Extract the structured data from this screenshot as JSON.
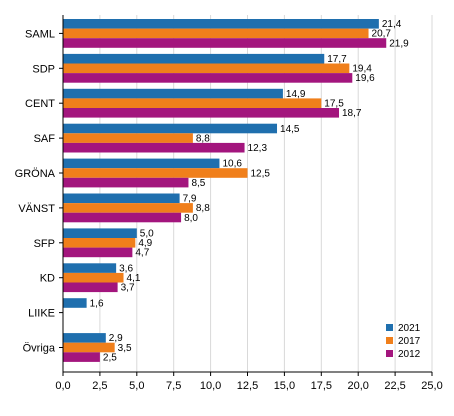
{
  "chart_data": {
    "type": "bar",
    "orientation": "horizontal",
    "categories": [
      "SAML",
      "SDP",
      "CENT",
      "SAF",
      "GRÖNA",
      "VÄNST",
      "SFP",
      "KD",
      "LIIKE",
      "Övriga"
    ],
    "series": [
      {
        "name": "2021",
        "color": "#1f6fae",
        "values": [
          21.4,
          17.7,
          14.9,
          14.5,
          10.6,
          7.9,
          5.0,
          3.6,
          1.6,
          2.9
        ]
      },
      {
        "name": "2017",
        "color": "#f07f1b",
        "values": [
          20.7,
          19.4,
          17.5,
          8.8,
          12.5,
          8.8,
          4.9,
          4.1,
          null,
          3.5
        ]
      },
      {
        "name": "2012",
        "color": "#a3157d",
        "values": [
          21.9,
          19.6,
          18.7,
          12.3,
          8.5,
          8.0,
          4.7,
          3.7,
          null,
          2.5
        ]
      }
    ],
    "data_labels": [
      [
        "21,4",
        "17,7",
        "14,9",
        "14,5",
        "10,6",
        "7,9",
        "5,0",
        "3,6",
        "1,6",
        "2,9"
      ],
      [
        "20,7",
        "19,4",
        "17,5",
        "8,8",
        "12,5",
        "8,8",
        "4,9",
        "4,1",
        "",
        "3,5"
      ],
      [
        "21,9",
        "19,6",
        "18,7",
        "12,3",
        "8,5",
        "8,0",
        "4,7",
        "3,7",
        "",
        "2,5"
      ]
    ],
    "x_ticks": [
      "0,0",
      "2,5",
      "5,0",
      "7,5",
      "10,0",
      "12,5",
      "15,0",
      "17,5",
      "20,0",
      "22,5",
      "25,0"
    ],
    "xlim": [
      0,
      25
    ],
    "grid": "vertical gridlines",
    "legend_position": "bottom-right",
    "title": "",
    "xlabel": "",
    "ylabel": ""
  }
}
